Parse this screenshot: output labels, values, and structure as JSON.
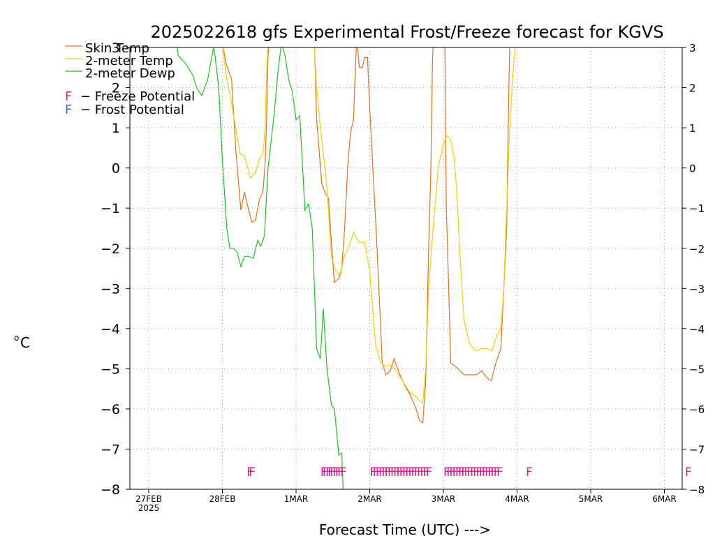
{
  "chart_data": {
    "type": "line",
    "title": "2025022618 gfs Experimental Frost/Freeze forecast for KGVS",
    "xlabel": "Forecast Time (UTC) --->",
    "ylabel_unit": "o",
    "ylabel_letter": "C",
    "ylim": [
      -8,
      3
    ],
    "xlim": [
      -0.25,
      7.25
    ],
    "grid": true,
    "legend_position": "top-left",
    "y_ticks": [
      -8,
      -7,
      -6,
      -5,
      -4,
      -3,
      -2,
      -1,
      0,
      1,
      2,
      3
    ],
    "x_ticks": [
      {
        "x": 0,
        "label": "27FEB",
        "sublabel": "2025"
      },
      {
        "x": 1,
        "label": "28FEB",
        "sublabel": ""
      },
      {
        "x": 2,
        "label": "1MAR",
        "sublabel": ""
      },
      {
        "x": 3,
        "label": "2MAR",
        "sublabel": ""
      },
      {
        "x": 4,
        "label": "3MAR",
        "sublabel": ""
      },
      {
        "x": 5,
        "label": "4MAR",
        "sublabel": ""
      },
      {
        "x": 6,
        "label": "5MAR",
        "sublabel": ""
      },
      {
        "x": 7,
        "label": "6MAR",
        "sublabel": ""
      }
    ],
    "series": [
      {
        "name": "Skin Temp",
        "color": "#e07020",
        "points": [
          [
            1.0,
            3.1
          ],
          [
            1.05,
            2.6
          ],
          [
            1.125,
            2.2
          ],
          [
            1.18,
            0.5
          ],
          [
            1.25,
            -1.05
          ],
          [
            1.3,
            -0.6
          ],
          [
            1.35,
            -1.0
          ],
          [
            1.4,
            -1.35
          ],
          [
            1.45,
            -1.3
          ],
          [
            1.5,
            -0.8
          ],
          [
            1.55,
            -0.6
          ],
          [
            1.58,
            0.1
          ],
          [
            1.6,
            1.2
          ],
          [
            1.62,
            2.8
          ],
          [
            1.63,
            3.1
          ],
          [
            2.25,
            3.1
          ],
          [
            2.28,
            1.2
          ],
          [
            2.35,
            -0.4
          ],
          [
            2.4,
            -0.65
          ],
          [
            2.44,
            -0.75
          ],
          [
            2.47,
            -1.6
          ],
          [
            2.52,
            -2.85
          ],
          [
            2.58,
            -2.75
          ],
          [
            2.62,
            -2.5
          ],
          [
            2.66,
            -1.5
          ],
          [
            2.7,
            0.0
          ],
          [
            2.74,
            0.9
          ],
          [
            2.78,
            1.2
          ],
          [
            2.8,
            2.2
          ],
          [
            2.82,
            3.1
          ],
          [
            2.83,
            3.1
          ],
          [
            2.86,
            2.5
          ],
          [
            2.9,
            2.5
          ],
          [
            2.93,
            2.75
          ],
          [
            2.97,
            2.75
          ],
          [
            3.0,
            1.5
          ],
          [
            3.1,
            -2.0
          ],
          [
            3.17,
            -4.85
          ],
          [
            3.22,
            -5.15
          ],
          [
            3.28,
            -5.05
          ],
          [
            3.33,
            -4.75
          ],
          [
            3.4,
            -5.1
          ],
          [
            3.47,
            -5.4
          ],
          [
            3.55,
            -5.65
          ],
          [
            3.62,
            -5.95
          ],
          [
            3.68,
            -6.3
          ],
          [
            3.72,
            -6.35
          ],
          [
            3.76,
            -5.3
          ],
          [
            3.8,
            -2.0
          ],
          [
            3.83,
            0.0
          ],
          [
            3.85,
            2.5
          ],
          [
            3.86,
            3.1
          ],
          [
            4.02,
            3.1
          ],
          [
            4.04,
            -1.0
          ],
          [
            4.08,
            -3.5
          ],
          [
            4.1,
            -4.85
          ],
          [
            4.2,
            -5.0
          ],
          [
            4.28,
            -5.15
          ],
          [
            4.38,
            -5.15
          ],
          [
            4.45,
            -5.15
          ],
          [
            4.52,
            -5.05
          ],
          [
            4.58,
            -5.2
          ],
          [
            4.65,
            -5.3
          ],
          [
            4.72,
            -4.8
          ],
          [
            4.78,
            -4.5
          ],
          [
            4.82,
            -3.0
          ],
          [
            4.86,
            -1.5
          ],
          [
            4.88,
            1.0
          ],
          [
            4.9,
            3.1
          ]
        ]
      },
      {
        "name": "2-meter Temp",
        "color": "#f0d000",
        "points": [
          [
            1.0,
            3.1
          ],
          [
            1.05,
            2.3
          ],
          [
            1.125,
            1.6
          ],
          [
            1.18,
            1.0
          ],
          [
            1.24,
            0.35
          ],
          [
            1.3,
            0.3
          ],
          [
            1.38,
            -0.25
          ],
          [
            1.45,
            -0.1
          ],
          [
            1.5,
            0.2
          ],
          [
            1.55,
            0.35
          ],
          [
            1.58,
            1.0
          ],
          [
            1.6,
            2.3
          ],
          [
            1.62,
            3.1
          ],
          [
            2.25,
            3.1
          ],
          [
            2.27,
            2.2
          ],
          [
            2.33,
            1.0
          ],
          [
            2.38,
            0.2
          ],
          [
            2.42,
            -0.5
          ],
          [
            2.48,
            -2.2
          ],
          [
            2.54,
            -2.55
          ],
          [
            2.6,
            -2.7
          ],
          [
            2.65,
            -2.2
          ],
          [
            2.72,
            -1.95
          ],
          [
            2.78,
            -1.6
          ],
          [
            2.85,
            -1.85
          ],
          [
            2.93,
            -1.85
          ],
          [
            3.0,
            -2.6
          ],
          [
            3.08,
            -4.4
          ],
          [
            3.15,
            -4.85
          ],
          [
            3.22,
            -4.95
          ],
          [
            3.3,
            -4.9
          ],
          [
            3.38,
            -5.1
          ],
          [
            3.46,
            -5.35
          ],
          [
            3.55,
            -5.6
          ],
          [
            3.63,
            -5.7
          ],
          [
            3.68,
            -5.8
          ],
          [
            3.72,
            -5.85
          ],
          [
            3.76,
            -5.0
          ],
          [
            3.8,
            -3.0
          ],
          [
            3.86,
            -1.5
          ],
          [
            3.93,
            0.0
          ],
          [
            4.0,
            0.6
          ],
          [
            4.05,
            0.8
          ],
          [
            4.1,
            0.7
          ],
          [
            4.14,
            0.3
          ],
          [
            4.18,
            -0.5
          ],
          [
            4.22,
            -2.0
          ],
          [
            4.28,
            -3.8
          ],
          [
            4.36,
            -4.4
          ],
          [
            4.44,
            -4.55
          ],
          [
            4.52,
            -4.5
          ],
          [
            4.6,
            -4.5
          ],
          [
            4.66,
            -4.55
          ],
          [
            4.72,
            -4.2
          ],
          [
            4.78,
            -4.0
          ],
          [
            4.82,
            -3.0
          ],
          [
            4.86,
            -1.0
          ],
          [
            4.9,
            1.0
          ],
          [
            4.95,
            2.5
          ],
          [
            4.98,
            3.1
          ]
        ]
      },
      {
        "name": "2-meter Dewp",
        "color": "#20c020",
        "points": [
          [
            0.38,
            3.1
          ],
          [
            0.4,
            2.8
          ],
          [
            0.5,
            2.6
          ],
          [
            0.6,
            2.3
          ],
          [
            0.65,
            2.0
          ],
          [
            0.72,
            1.8
          ],
          [
            0.8,
            2.2
          ],
          [
            0.88,
            3.0
          ],
          [
            0.9,
            2.8
          ],
          [
            0.95,
            2.0
          ],
          [
            1.0,
            0.2
          ],
          [
            1.06,
            -1.5
          ],
          [
            1.1,
            -2.0
          ],
          [
            1.15,
            -2.0
          ],
          [
            1.2,
            -2.1
          ],
          [
            1.25,
            -2.45
          ],
          [
            1.3,
            -2.2
          ],
          [
            1.35,
            -2.2
          ],
          [
            1.42,
            -2.25
          ],
          [
            1.48,
            -1.8
          ],
          [
            1.52,
            -1.95
          ],
          [
            1.57,
            -1.7
          ],
          [
            1.62,
            0.0
          ],
          [
            1.7,
            1.3
          ],
          [
            1.75,
            2.3
          ],
          [
            1.8,
            3.1
          ],
          [
            1.85,
            2.8
          ],
          [
            1.9,
            2.2
          ],
          [
            1.95,
            1.9
          ],
          [
            2.0,
            1.2
          ],
          [
            2.05,
            1.3
          ],
          [
            2.12,
            -1.05
          ],
          [
            2.17,
            -0.9
          ],
          [
            2.22,
            -1.5
          ],
          [
            2.28,
            -4.5
          ],
          [
            2.33,
            -4.75
          ],
          [
            2.37,
            -3.5
          ],
          [
            2.42,
            -5.0
          ],
          [
            2.48,
            -5.9
          ],
          [
            2.52,
            -6.0
          ],
          [
            2.58,
            -7.15
          ],
          [
            2.62,
            -7.1
          ],
          [
            2.64,
            -8.0
          ]
        ]
      }
    ],
    "freeze_potential": {
      "label": "Freeze Potential",
      "letter": "F",
      "color": "#d02090",
      "y": -7.55,
      "x": [
        1.33,
        1.36,
        2.33,
        2.36,
        2.4,
        2.43,
        2.46,
        2.5,
        2.53,
        2.56,
        2.6,
        3.0,
        3.04,
        3.08,
        3.12,
        3.16,
        3.2,
        3.24,
        3.28,
        3.32,
        3.36,
        3.4,
        3.44,
        3.48,
        3.52,
        3.56,
        3.6,
        3.64,
        3.68,
        3.72,
        3.76,
        4.0,
        4.04,
        4.08,
        4.12,
        4.16,
        4.2,
        4.24,
        4.28,
        4.32,
        4.36,
        4.4,
        4.44,
        4.48,
        4.52,
        4.56,
        4.6,
        4.64,
        4.68,
        4.72,
        5.12,
        7.28
      ]
    },
    "frost_potential": {
      "label": "Frost Potential",
      "letter": "F",
      "color": "#4060e0"
    }
  }
}
